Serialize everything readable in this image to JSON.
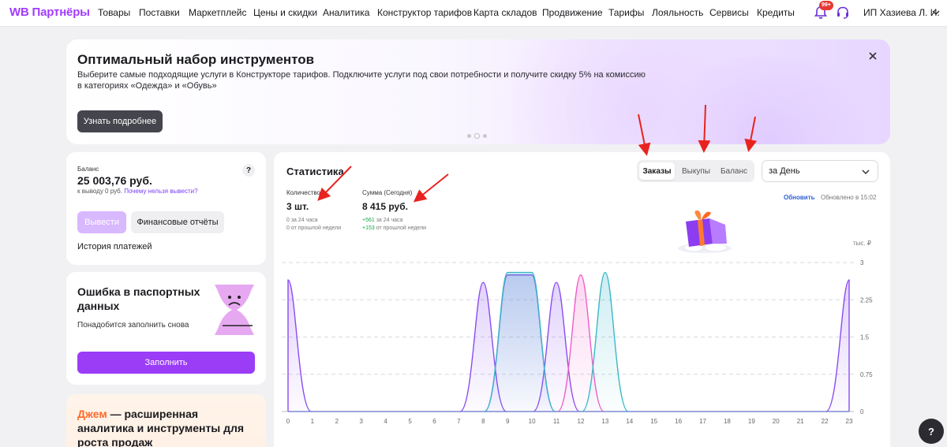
{
  "header": {
    "logo": "WB Партнёры",
    "nav": [
      "Товары",
      "Поставки",
      "Маркетплейс",
      "Цены и скидки",
      "Аналитика",
      "Конструктор тарифов",
      "Карта складов",
      "Продвижение",
      "Тарифы",
      "Лояльность",
      "Сервисы",
      "Кредиты"
    ],
    "notifications_badge": "99+",
    "user": "ИП Хазиева Л. И."
  },
  "banner": {
    "title": "Оптимальный набор инструментов",
    "text": "Выберите самые подходящие услуги в Конструкторе тарифов. Подключите услуги под свои потребности и получите скидку 5% на комиссию в категориях «Одежда» и «Обувь»",
    "button": "Узнать подробнее"
  },
  "balance": {
    "label": "Баланс",
    "amount": "25 003,76 руб.",
    "withdraw_available": "к выводу 0 руб.",
    "why_link": "Почему нельзя вывести?",
    "help": "?",
    "withdraw_button": "Вывести",
    "reports_button": "Финансовые отчёты",
    "history_link": "История платежей"
  },
  "passport": {
    "title": "Ошибка в паспортных данных",
    "subtitle": "Понадобится заполнить снова",
    "button": "Заполнить"
  },
  "jam": {
    "accent": "Джем",
    "rest": " — расширенная аналитика и инструменты для роста продаж"
  },
  "stats": {
    "title": "Статистика",
    "tabs": [
      "Заказы",
      "Выкупы",
      "Баланс"
    ],
    "period": "за День",
    "quantity": {
      "label": "Количество",
      "value": "3 шт.",
      "note1": "0 за 24 часа",
      "note2": "0 от прошлой недели"
    },
    "sum": {
      "label": "Сумма (Сегодня)",
      "value": "8 415 руб.",
      "note1_value": "+561",
      "note1_text": " за 24 часа",
      "note2_value": "+153",
      "note2_text": " от прошлой недели"
    },
    "refresh": "Обновить",
    "updated": "Обновлено в 15:02",
    "unit": "тыс. ₽"
  },
  "chart_data": {
    "type": "area",
    "x": [
      0,
      1,
      2,
      3,
      4,
      5,
      6,
      7,
      8,
      9,
      10,
      11,
      12,
      13,
      14,
      15,
      16,
      17,
      18,
      19,
      20,
      21,
      22,
      23
    ],
    "ylim": [
      0,
      3
    ],
    "yticks": [
      0,
      0.75,
      1.5,
      2.25,
      3
    ],
    "ytick_labels": [
      "0",
      "0.75",
      "1.5",
      "2.25",
      "3"
    ],
    "series": [
      {
        "color": "#8a4cf0",
        "peaks": [
          {
            "x": 0,
            "y": 2.65
          },
          {
            "x": 8,
            "y": 2.6
          },
          {
            "x": 11,
            "y": 2.6
          },
          {
            "x": 23,
            "y": 2.65
          }
        ]
      },
      {
        "color": "#8a4cf0",
        "plateau": {
          "from": 9,
          "to": 10,
          "y": 2.75
        }
      },
      {
        "color": "#f05cc8",
        "peaks": [
          {
            "x": 12,
            "y": 2.75
          }
        ]
      },
      {
        "color": "#3ab7c9",
        "plateau": {
          "from": 9,
          "to": 10,
          "y": 2.8
        },
        "peaks": [
          {
            "x": 13,
            "y": 2.8
          }
        ]
      }
    ]
  }
}
